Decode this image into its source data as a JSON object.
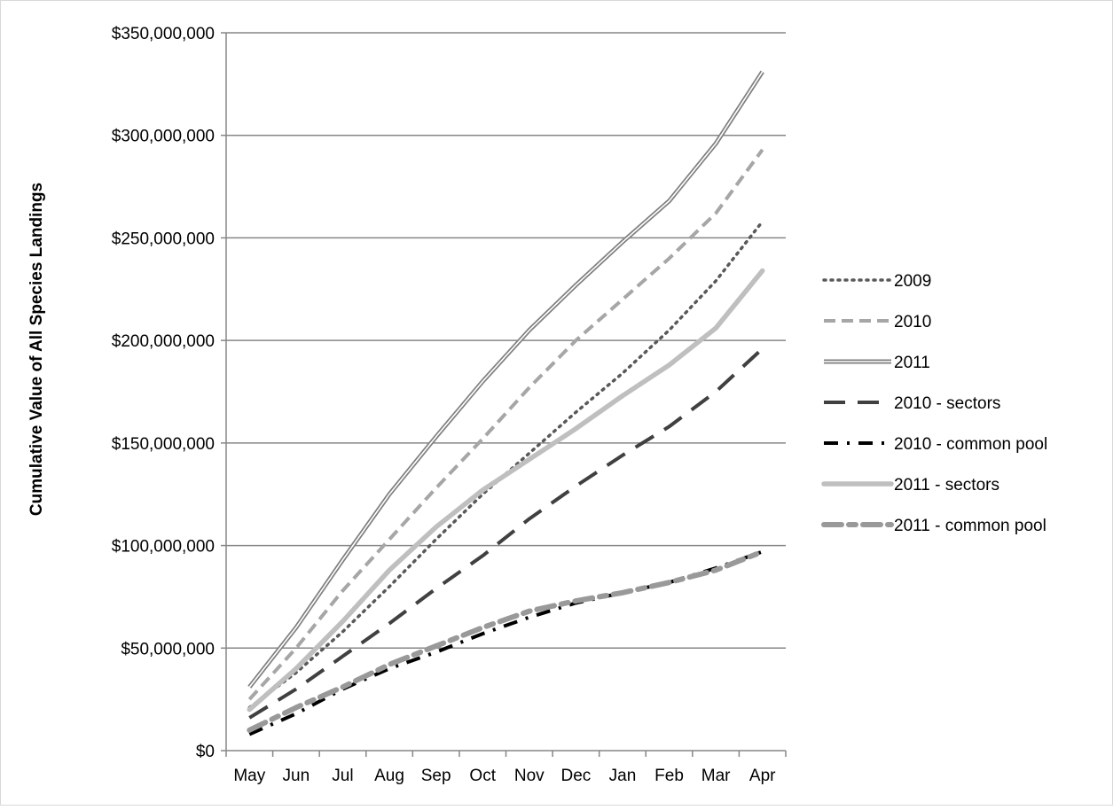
{
  "chart_data": {
    "type": "line",
    "title": "",
    "xlabel": "",
    "ylabel": "Cumulative Value of All Species Landings",
    "categories": [
      "May",
      "Jun",
      "Jul",
      "Aug",
      "Sep",
      "Oct",
      "Nov",
      "Dec",
      "Jan",
      "Feb",
      "Mar",
      "Apr"
    ],
    "ylim": [
      0,
      350000000
    ],
    "y_ticks": [
      0,
      50000000,
      100000000,
      150000000,
      200000000,
      250000000,
      300000000,
      350000000
    ],
    "y_tick_labels": [
      "$0",
      "$50,000,000",
      "$100,000,000",
      "$150,000,000",
      "$200,000,000",
      "$250,000,000",
      "$300,000,000",
      "$350,000,000"
    ],
    "grid": true,
    "legend_position": "right",
    "series": [
      {
        "name": "2009",
        "color": "#595959",
        "style": "dotted",
        "values": [
          21000000,
          38000000,
          58000000,
          80000000,
          103000000,
          125000000,
          145000000,
          165000000,
          184000000,
          205000000,
          229000000,
          258000000
        ]
      },
      {
        "name": "2010",
        "color": "#a6a6a6",
        "style": "dashed",
        "values": [
          25000000,
          50000000,
          78000000,
          103000000,
          128000000,
          152000000,
          177000000,
          200000000,
          220000000,
          240000000,
          262000000,
          293000000
        ]
      },
      {
        "name": "2011",
        "color": "#7f7f7f",
        "style": "double",
        "values": [
          31000000,
          60000000,
          93000000,
          125000000,
          153000000,
          180000000,
          205000000,
          227000000,
          248000000,
          268000000,
          296000000,
          331000000
        ]
      },
      {
        "name": "2010 - sectors",
        "color": "#404040",
        "style": "longdash",
        "values": [
          16000000,
          30000000,
          46000000,
          62000000,
          79000000,
          95000000,
          113000000,
          129000000,
          144000000,
          158000000,
          175000000,
          196000000
        ]
      },
      {
        "name": "2010 - common pool",
        "color": "#000000",
        "style": "dashdot",
        "values": [
          8000000,
          18000000,
          30000000,
          40000000,
          48000000,
          57000000,
          65000000,
          72000000,
          77000000,
          82000000,
          89000000,
          97000000
        ]
      },
      {
        "name": "2011 - sectors",
        "color": "#bfbfbf",
        "style": "solid-thick",
        "values": [
          20000000,
          40000000,
          63000000,
          88000000,
          109000000,
          127000000,
          142000000,
          157000000,
          173000000,
          188000000,
          206000000,
          234000000
        ]
      },
      {
        "name": "2011 - common pool",
        "color": "#999999",
        "style": "dashed-thick",
        "values": [
          10000000,
          21000000,
          31000000,
          42000000,
          51000000,
          60000000,
          68000000,
          73000000,
          77000000,
          82000000,
          88000000,
          97000000
        ]
      }
    ]
  }
}
